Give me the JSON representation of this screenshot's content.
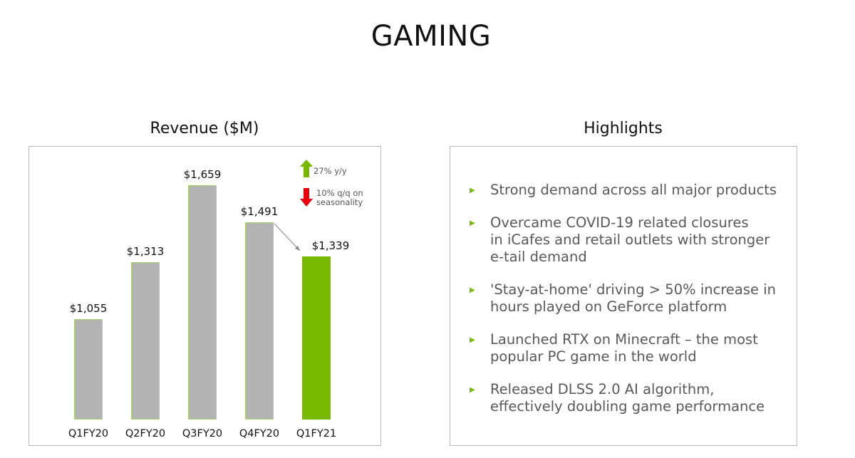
{
  "page": {
    "title": "GAMING"
  },
  "revenue_panel": {
    "title": "Revenue ($M)",
    "annotations": {
      "up": {
        "icon": "green-up-arrow-icon",
        "text": "27% y/y",
        "color": "#76b900"
      },
      "down": {
        "icon": "red-down-arrow-icon",
        "line1": "10% q/q on",
        "line2": "seasonality",
        "color": "#e8000b"
      }
    }
  },
  "highlights_panel": {
    "title": "Highlights",
    "bullet_icon": "green-triangle-bullet-icon",
    "items": [
      {
        "lines": [
          "Strong demand across all major products"
        ]
      },
      {
        "lines": [
          "Overcame COVID-19 related closures",
          "in iCafes and retail outlets with stronger",
          "e-tail demand"
        ]
      },
      {
        "lines": [
          "'Stay-at-home' driving > 50% increase in",
          "hours played on GeForce platform"
        ]
      },
      {
        "lines": [
          "Launched RTX on Minecraft – the most",
          "popular PC game in the world"
        ]
      },
      {
        "lines": [
          "Released DLSS 2.0 AI algorithm,",
          "effectively doubling game performance"
        ]
      }
    ]
  },
  "colors": {
    "accent_green": "#76b900",
    "bar_gray": "#b3b3b3",
    "down_red": "#e8000b",
    "bullet_text": "#595959"
  },
  "chart_data": {
    "type": "bar",
    "title": "Revenue ($M)",
    "xlabel": "",
    "ylabel": "Revenue ($M)",
    "categories": [
      "Q1FY20",
      "Q2FY20",
      "Q3FY20",
      "Q4FY20",
      "Q1FY21"
    ],
    "values": [
      1055,
      1313,
      1659,
      1491,
      1339
    ],
    "value_labels": [
      "$1,055",
      "$1,313",
      "$1,659",
      "$1,491",
      "$1,339"
    ],
    "highlighted_index": 4,
    "grid": false,
    "legend": null,
    "annotations": [
      "27% y/y",
      "10% q/q on seasonality"
    ]
  }
}
